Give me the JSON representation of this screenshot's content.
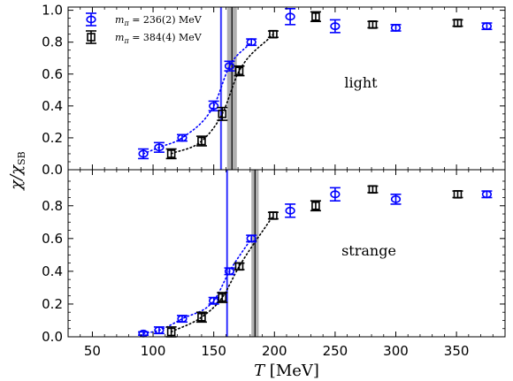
{
  "chart_data": {
    "type": "scatter",
    "xlabel_symbol": "T",
    "xlabel_unit": "[MeV]",
    "ylabel_main": "χ/χ",
    "ylabel_sub": "SB",
    "xlim": [
      30,
      390
    ],
    "xticks": [
      50,
      100,
      150,
      200,
      250,
      300,
      350
    ],
    "legend_location": "top-left",
    "legend": [
      {
        "symbol": "m",
        "subscript": "π",
        "rest": " = 236(2) MeV",
        "color": "#0000ff",
        "marker": "circle"
      },
      {
        "symbol": "m",
        "subscript": "π",
        "rest": " = 384(4) MeV",
        "color": "#000000",
        "marker": "square"
      }
    ],
    "panels": [
      {
        "label": "light",
        "ylim": [
          0,
          1.02
        ],
        "yticks": [
          0.0,
          0.2,
          0.4,
          0.6,
          0.8,
          1.0
        ],
        "yticklabels": [
          "0.0",
          "0.2",
          "0.4",
          "0.6",
          "0.8",
          "1.0"
        ],
        "series": [
          {
            "color": "#0000ff",
            "marker": "circle",
            "points": [
              {
                "x": 92,
                "y": 0.1,
                "err": 0.03
              },
              {
                "x": 105,
                "y": 0.14,
                "err": 0.03
              },
              {
                "x": 124,
                "y": 0.2,
                "err": 0.02
              },
              {
                "x": 150,
                "y": 0.4,
                "err": 0.03
              },
              {
                "x": 163,
                "y": 0.65,
                "err": 0.03
              },
              {
                "x": 181,
                "y": 0.8,
                "err": 0.02
              },
              {
                "x": 213,
                "y": 0.96,
                "err": 0.05
              },
              {
                "x": 250,
                "y": 0.9,
                "err": 0.04
              },
              {
                "x": 300,
                "y": 0.89,
                "err": 0.02
              },
              {
                "x": 375,
                "y": 0.9,
                "err": 0.02
              }
            ]
          },
          {
            "color": "#000000",
            "marker": "square",
            "points": [
              {
                "x": 115,
                "y": 0.1,
                "err": 0.03
              },
              {
                "x": 140,
                "y": 0.18,
                "err": 0.03
              },
              {
                "x": 157,
                "y": 0.35,
                "err": 0.04
              },
              {
                "x": 171,
                "y": 0.62,
                "err": 0.03
              },
              {
                "x": 199,
                "y": 0.85,
                "err": 0.02
              },
              {
                "x": 234,
                "y": 0.96,
                "err": 0.03
              },
              {
                "x": 281,
                "y": 0.91,
                "err": 0.02
              },
              {
                "x": 351,
                "y": 0.92,
                "err": 0.02
              }
            ]
          }
        ],
        "crossover_bands": [
          {
            "color": "#0000ff",
            "center": 156,
            "low": 155,
            "high": 157
          },
          {
            "color": "#000000",
            "center": 165,
            "low": 161,
            "high": 169
          }
        ]
      },
      {
        "label": "strange",
        "ylim": [
          0,
          1.02
        ],
        "yticks": [
          0.0,
          0.2,
          0.4,
          0.6,
          0.8
        ],
        "yticklabels": [
          "0.0",
          "0.2",
          "0.4",
          "0.6",
          "0.8"
        ],
        "series": [
          {
            "color": "#0000ff",
            "marker": "circle",
            "points": [
              {
                "x": 92,
                "y": 0.02,
                "err": 0.01
              },
              {
                "x": 105,
                "y": 0.04,
                "err": 0.02
              },
              {
                "x": 124,
                "y": 0.11,
                "err": 0.02
              },
              {
                "x": 150,
                "y": 0.22,
                "err": 0.02
              },
              {
                "x": 163,
                "y": 0.4,
                "err": 0.02
              },
              {
                "x": 181,
                "y": 0.6,
                "err": 0.02
              },
              {
                "x": 213,
                "y": 0.77,
                "err": 0.04
              },
              {
                "x": 250,
                "y": 0.87,
                "err": 0.04
              },
              {
                "x": 300,
                "y": 0.84,
                "err": 0.03
              },
              {
                "x": 375,
                "y": 0.87,
                "err": 0.02
              }
            ]
          },
          {
            "color": "#000000",
            "marker": "square",
            "points": [
              {
                "x": 115,
                "y": 0.03,
                "err": 0.03
              },
              {
                "x": 140,
                "y": 0.12,
                "err": 0.03
              },
              {
                "x": 157,
                "y": 0.24,
                "err": 0.03
              },
              {
                "x": 171,
                "y": 0.43,
                "err": 0.02
              },
              {
                "x": 199,
                "y": 0.74,
                "err": 0.02
              },
              {
                "x": 234,
                "y": 0.8,
                "err": 0.03
              },
              {
                "x": 281,
                "y": 0.9,
                "err": 0.02
              },
              {
                "x": 351,
                "y": 0.87,
                "err": 0.02
              }
            ]
          }
        ],
        "crossover_bands": [
          {
            "color": "#0000ff",
            "center": 161,
            "low": 160,
            "high": 162
          },
          {
            "color": "#000000",
            "center": 184,
            "low": 181,
            "high": 187
          }
        ]
      }
    ]
  }
}
